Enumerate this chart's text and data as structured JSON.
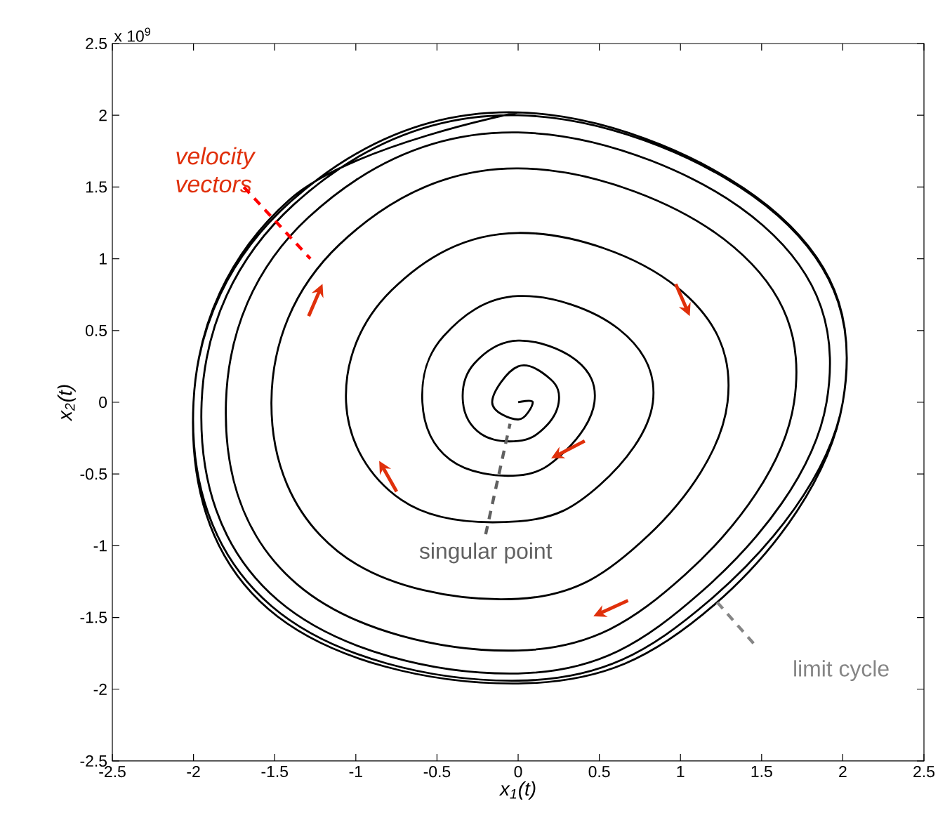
{
  "chart_data": {
    "type": "line",
    "xlabel": "x$_{1}$(t)",
    "ylabel": "x$_{2}$(t)",
    "xlim": [
      -2.5,
      2.5
    ],
    "ylim": [
      -2.5,
      2.5
    ],
    "xticks": [
      -2.5,
      -2,
      -1.5,
      -1,
      -0.5,
      0,
      0.5,
      1,
      1.5,
      2,
      2.5
    ],
    "yticks": [
      -2.5,
      -2,
      -1.5,
      -1,
      -0.5,
      0,
      0.5,
      1,
      1.5,
      2,
      2.5
    ],
    "grid": false,
    "marker": "none",
    "line_style": "solid",
    "series": [
      {
        "color": "#000000",
        "x": [
          0,
          0.09,
          0,
          -0.16,
          0,
          0.2,
          0.25,
          0.16,
          0,
          -0.23,
          -0.34,
          -0.27,
          0,
          0.36,
          0.47,
          0.29,
          0,
          -0.42,
          -0.59,
          -0.46,
          0,
          0.62,
          0.83,
          0.5,
          0,
          -0.72,
          -1.06,
          -0.78,
          0,
          0.98,
          1.29,
          0.8,
          0,
          -1.11,
          -1.52,
          -1.1,
          0,
          1.33,
          1.7,
          1.03,
          0,
          -1.36,
          -1.8,
          -1.29,
          0,
          1.51,
          1.9,
          1.13,
          0,
          -1.48,
          -1.95,
          -1.38,
          0,
          1.6,
          2.0,
          1.18,
          0,
          -1.52,
          -2.0,
          -1.4,
          0,
          1.61,
          2.0,
          1.21,
          0,
          -1.54,
          -2.0,
          -1.41,
          0
        ],
        "values": [
          0,
          0,
          -0.12,
          0,
          0.25,
          0.16,
          0,
          -0.18,
          -0.27,
          -0.22,
          0,
          0.27,
          0.43,
          0.29,
          0,
          -0.34,
          -0.51,
          -0.4,
          0,
          0.46,
          0.74,
          0.51,
          0,
          -0.58,
          -0.83,
          -0.68,
          0,
          0.78,
          1.18,
          0.8,
          0,
          -0.93,
          -1.37,
          -1.04,
          0,
          1.1,
          1.63,
          1.08,
          0,
          -1.2,
          -1.73,
          -1.27,
          0,
          1.29,
          1.88,
          1.23,
          0,
          -1.32,
          -1.89,
          -1.38,
          0,
          1.38,
          2.0,
          1.3,
          0,
          -1.38,
          -1.94,
          -1.42,
          0,
          1.4,
          2.02,
          1.3,
          0,
          -1.41,
          -1.96,
          -1.44,
          0,
          1.41,
          2.02
        ]
      }
    ],
    "annotations": [
      "x 10$^{9}$",
      "velocity vectors",
      "singular point",
      "limit cycle"
    ]
  }
}
